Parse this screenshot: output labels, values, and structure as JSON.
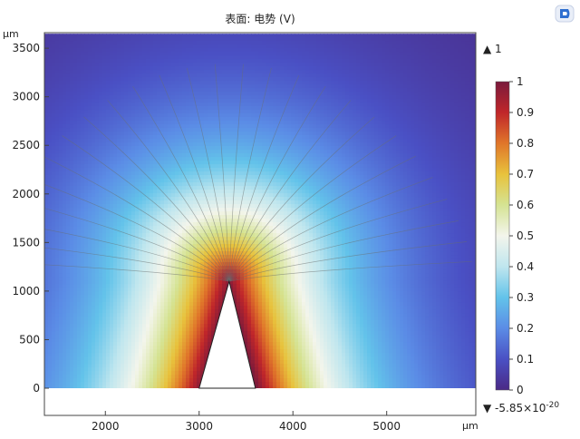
{
  "app": {
    "logo_icon": "comsol-logo-icon"
  },
  "chart_data": {
    "type": "heatmap",
    "title": "表面: 电势 (V)",
    "x_unit": "µm",
    "y_unit": "µm",
    "xlim": [
      1350,
      5950
    ],
    "ylim": [
      -280,
      3660
    ],
    "x_ticks": [
      2000,
      3000,
      4000,
      5000
    ],
    "y_ticks": [
      0,
      500,
      1000,
      1500,
      2000,
      2500,
      3000,
      3500
    ],
    "field": {
      "name": "电势",
      "unit": "V",
      "max_marker": "▲ 1",
      "min_marker": "▼ -5.85×10",
      "min_marker_exponent": "-20",
      "max_value": 1,
      "min_value": -5.85e-20
    },
    "colorbar": {
      "ticks": [
        0,
        0.1,
        0.2,
        0.3,
        0.4,
        0.5,
        0.6,
        0.7,
        0.8,
        0.9,
        1
      ],
      "colors": [
        "#4a2a86",
        "#4a50c4",
        "#5b8ce6",
        "#63c3ea",
        "#bfe6ee",
        "#f3f5ec",
        "#d5e393",
        "#e8c23c",
        "#e0762a",
        "#c0262a",
        "#7a1a3c"
      ]
    },
    "domain": {
      "x_range": [
        1350,
        5950
      ],
      "y_range": [
        0,
        3650
      ]
    },
    "electrode": {
      "base_left": [
        3000,
        0
      ],
      "apex": [
        3320,
        1100
      ],
      "base_right": [
        3600,
        0
      ]
    },
    "field_lines": {
      "count": 26,
      "color": "#6a6f70"
    }
  }
}
